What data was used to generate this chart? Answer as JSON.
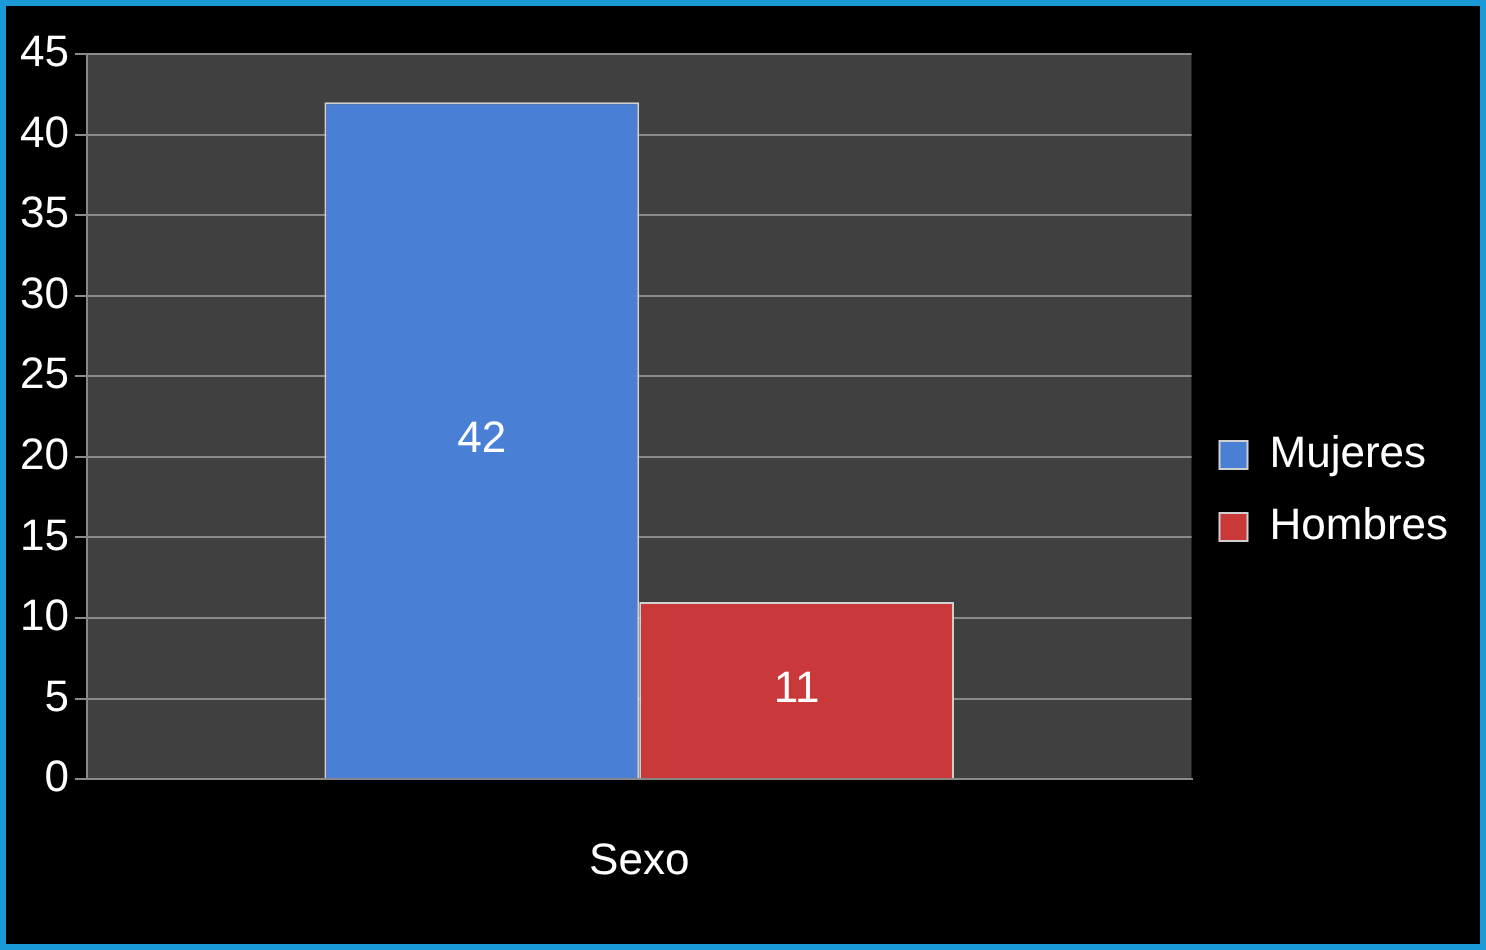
{
  "chart_data": {
    "type": "bar",
    "categories": [
      "Sexo"
    ],
    "series": [
      {
        "name": "Mujeres",
        "color": "#4a7fd6",
        "values": [
          42
        ]
      },
      {
        "name": "Hombres",
        "color": "#c9393a",
        "values": [
          11
        ]
      }
    ],
    "ylim": [
      0,
      45
    ],
    "yticks": [
      0,
      5,
      10,
      15,
      20,
      25,
      30,
      35,
      40,
      45
    ],
    "grid": "y",
    "legend": "right",
    "data_labels": true
  }
}
